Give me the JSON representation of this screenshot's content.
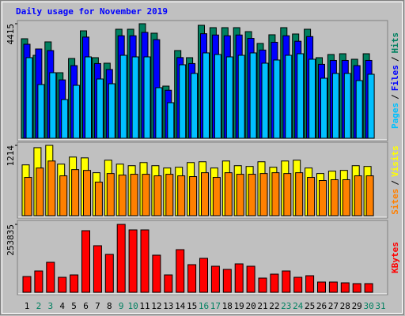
{
  "title": "Daily usage for November 2019",
  "legend_separator": "/",
  "chart_data": [
    {
      "type": "bar",
      "ylim": [
        0,
        4415
      ],
      "yticks": [
        4415
      ],
      "series": [
        {
          "name": "Hits",
          "color": "#008060",
          "values": [
            3836,
            3197,
            3715,
            2527,
            3075,
            4141,
            3106,
            2893,
            4202,
            4202,
            4415,
            4050,
            2010,
            3380,
            3106,
            4354,
            4263,
            4263,
            4263,
            4110,
            3654,
            3989,
            4263,
            4019,
            4202,
            3106,
            3228,
            3258,
            3045,
            3258,
            null
          ]
        },
        {
          "name": "Files",
          "color": "#0000ff",
          "values": [
            3624,
            3441,
            3380,
            2250,
            2800,
            3900,
            2880,
            2650,
            3950,
            3950,
            4080,
            3800,
            1850,
            3110,
            2880,
            4030,
            3980,
            3950,
            3980,
            3850,
            3400,
            3700,
            3950,
            3740,
            3920,
            2850,
            3000,
            3000,
            2800,
            3000,
            null
          ]
        },
        {
          "name": "Pages",
          "color": "#00c0ff",
          "values": [
            3106,
            2070,
            2527,
            1492,
            2040,
            3136,
            2284,
            2101,
            3197,
            3136,
            3136,
            1949,
            1370,
            2832,
            2497,
            3289,
            3228,
            3136,
            3197,
            3289,
            2893,
            3015,
            3197,
            3258,
            3045,
            2314,
            2497,
            2497,
            2223,
            2467,
            null
          ]
        }
      ]
    },
    {
      "type": "bar",
      "ylim": [
        0,
        1214
      ],
      "yticks": [
        1214
      ],
      "series": [
        {
          "name": "Visits",
          "color": "#ffff00",
          "values": [
            877,
            1174,
            1214,
            890,
            1012,
            998,
            742,
            958,
            890,
            863,
            917,
            863,
            823,
            836,
            917,
            931,
            823,
            944,
            863,
            850,
            931,
            836,
            944,
            958,
            823,
            728,
            769,
            782,
            863,
            850,
            null
          ]
        },
        {
          "name": "Sites",
          "color": "#ff8000",
          "values": [
            661,
            823,
            944,
            688,
            796,
            782,
            580,
            728,
            701,
            715,
            715,
            688,
            715,
            688,
            675,
            742,
            661,
            742,
            715,
            715,
            728,
            742,
            728,
            742,
            661,
            607,
            621,
            621,
            688,
            688,
            null
          ]
        }
      ]
    },
    {
      "type": "bar",
      "ylim": [
        0,
        253835
      ],
      "yticks": [
        253835
      ],
      "categories": [
        "1",
        "2",
        "3",
        "4",
        "5",
        "6",
        "7",
        "8",
        "9",
        "10",
        "11",
        "12",
        "13",
        "14",
        "15",
        "16",
        "17",
        "18",
        "19",
        "20",
        "21",
        "22",
        "23",
        "24",
        "25",
        "26",
        "27",
        "28",
        "29",
        "30",
        "31"
      ],
      "category_colors": [
        "#000000",
        "#008060",
        "#008060",
        "#000000",
        "#000000",
        "#000000",
        "#000000",
        "#000000",
        "#008060",
        "#008060",
        "#000000",
        "#000000",
        "#000000",
        "#000000",
        "#000000",
        "#008060",
        "#008060",
        "#000000",
        "#000000",
        "#000000",
        "#000000",
        "#000000",
        "#008060",
        "#008060",
        "#000000",
        "#000000",
        "#000000",
        "#000000",
        "#000000",
        "#008060",
        "#008060"
      ],
      "series": [
        {
          "name": "KBytes",
          "color": "#ff0000",
          "values": [
            59040,
            79704,
            112176,
            56088,
            64944,
            230256,
            174168,
            141696,
            253835,
            233208,
            233208,
            138744,
            64944,
            159408,
            103320,
            126936,
            97416,
            85608,
            106272,
            97416,
            53136,
            67896,
            79704,
            56088,
            61992,
            38376,
            38376,
            35424,
            32472,
            32472,
            null
          ]
        }
      ]
    }
  ]
}
